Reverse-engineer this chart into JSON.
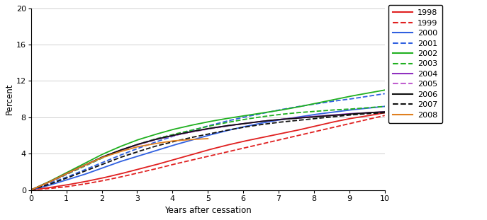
{
  "title": "",
  "ylabel": "Percent",
  "xlabel": "Years after cessation",
  "xlim": [
    0,
    10
  ],
  "ylim": [
    0,
    20
  ],
  "yticks": [
    0,
    4,
    8,
    12,
    16,
    20
  ],
  "xticks": [
    0,
    1,
    2,
    3,
    4,
    5,
    6,
    7,
    8,
    9,
    10
  ],
  "series": [
    {
      "label": "1998",
      "color": "#e02020",
      "linestyle": "solid",
      "points_t": [
        0,
        0.5,
        1,
        1.5,
        2,
        2.5,
        3,
        3.5,
        4,
        4.5,
        5,
        5.5,
        6,
        6.5,
        7,
        7.5,
        8,
        8.5,
        9,
        9.5,
        10
      ],
      "points_y": [
        0,
        0.25,
        0.55,
        0.9,
        1.3,
        1.75,
        2.25,
        2.75,
        3.3,
        3.85,
        4.4,
        4.9,
        5.35,
        5.75,
        6.15,
        6.55,
        7.0,
        7.45,
        7.85,
        8.15,
        8.5
      ]
    },
    {
      "label": "1999",
      "color": "#e02020",
      "linestyle": "dashed",
      "points_t": [
        0,
        0.5,
        1,
        1.5,
        2,
        2.5,
        3,
        3.5,
        4,
        4.5,
        5,
        5.5,
        6,
        6.5,
        7,
        7.5,
        8,
        8.5,
        9,
        9.5,
        10
      ],
      "points_y": [
        0,
        0.15,
        0.35,
        0.65,
        1.0,
        1.4,
        1.85,
        2.3,
        2.8,
        3.25,
        3.7,
        4.15,
        4.6,
        5.05,
        5.5,
        5.95,
        6.4,
        6.85,
        7.3,
        7.75,
        8.2
      ]
    },
    {
      "label": "2000",
      "color": "#3060e0",
      "linestyle": "solid",
      "points_t": [
        0,
        0.5,
        1,
        1.5,
        2,
        2.5,
        3,
        3.5,
        4,
        4.5,
        5,
        5.5,
        6,
        6.5,
        7,
        7.5,
        8,
        8.5,
        9,
        9.5,
        10
      ],
      "points_y": [
        0,
        0.5,
        1.1,
        1.7,
        2.4,
        3.1,
        3.7,
        4.3,
        4.9,
        5.45,
        6.0,
        6.5,
        6.95,
        7.35,
        7.7,
        8.0,
        8.3,
        8.55,
        8.8,
        9.0,
        9.2
      ]
    },
    {
      "label": "2001",
      "color": "#3060e0",
      "linestyle": "dashed",
      "points_t": [
        0,
        0.5,
        1,
        1.5,
        2,
        2.5,
        3,
        3.5,
        4,
        4.5,
        5,
        5.5,
        6,
        6.5,
        7,
        7.5,
        8,
        8.5,
        9,
        9.5,
        10
      ],
      "points_y": [
        0,
        0.7,
        1.4,
        2.2,
        3.0,
        3.8,
        4.55,
        5.25,
        5.9,
        6.5,
        7.05,
        7.55,
        8.0,
        8.4,
        8.8,
        9.15,
        9.45,
        9.75,
        10.0,
        10.3,
        10.6
      ]
    },
    {
      "label": "2002",
      "color": "#20b020",
      "linestyle": "solid",
      "points_t": [
        0,
        0.5,
        1,
        1.5,
        2,
        2.5,
        3,
        3.5,
        4,
        4.5,
        5,
        5.5,
        6,
        6.5,
        7,
        7.5,
        8,
        8.5,
        9,
        9.5,
        10
      ],
      "points_y": [
        0,
        0.9,
        1.9,
        2.9,
        3.9,
        4.75,
        5.5,
        6.1,
        6.65,
        7.1,
        7.5,
        7.85,
        8.15,
        8.45,
        8.75,
        9.1,
        9.5,
        9.9,
        10.3,
        10.65,
        11.0
      ]
    },
    {
      "label": "2003",
      "color": "#20b020",
      "linestyle": "dashed",
      "points_t": [
        0,
        0.5,
        1,
        1.5,
        2,
        2.5,
        3,
        3.5,
        4,
        4.5,
        5,
        5.5,
        6,
        6.5,
        7,
        7.5,
        8,
        8.5,
        9,
        9.5,
        10
      ],
      "points_y": [
        0,
        0.8,
        1.7,
        2.6,
        3.5,
        4.3,
        5.0,
        5.6,
        6.1,
        6.55,
        7.0,
        7.4,
        7.75,
        8.05,
        8.3,
        8.5,
        8.65,
        8.8,
        8.9,
        9.05,
        9.2
      ]
    },
    {
      "label": "2004",
      "color": "#9030c0",
      "linestyle": "solid",
      "points_t": [
        0,
        0.5,
        1,
        1.5,
        2,
        2.5,
        3,
        3.5,
        4,
        4.5,
        5,
        5.5,
        6,
        6.5,
        7,
        7.5,
        8,
        8.5,
        9,
        9.5,
        10
      ],
      "points_y": [
        0,
        0.85,
        1.8,
        2.7,
        3.6,
        4.35,
        5.0,
        5.55,
        6.0,
        6.4,
        6.75,
        7.05,
        7.3,
        7.55,
        7.75,
        7.95,
        8.1,
        8.25,
        8.4,
        8.5,
        8.6
      ]
    },
    {
      "label": "2005",
      "color": "#c060d0",
      "linestyle": "dashed",
      "points_t": [
        0,
        0.5,
        1,
        1.5,
        2,
        2.5,
        3,
        3.5,
        4,
        4.5,
        5,
        5.5,
        6,
        6.5,
        7,
        7.5,
        8,
        8.5,
        9,
        9.5,
        10
      ],
      "points_y": [
        0,
        0.8,
        1.75,
        2.65,
        3.55,
        4.3,
        4.95,
        5.5,
        5.95,
        6.35,
        6.7,
        7.0,
        7.3,
        7.55,
        7.75,
        7.9,
        8.05,
        8.2,
        8.35,
        8.5,
        8.6
      ]
    },
    {
      "label": "2006",
      "color": "#101010",
      "linestyle": "solid",
      "points_t": [
        0,
        0.5,
        1,
        1.5,
        2,
        2.5,
        3,
        3.5,
        4,
        4.5,
        5,
        5.5,
        6,
        6.5,
        7,
        7.5,
        8,
        8.5,
        9,
        9.5,
        10
      ],
      "points_y": [
        0,
        0.85,
        1.8,
        2.7,
        3.6,
        4.35,
        5.0,
        5.55,
        6.0,
        6.4,
        6.75,
        7.05,
        7.3,
        7.55,
        7.75,
        7.9,
        8.05,
        8.2,
        8.35,
        8.5,
        8.6
      ]
    },
    {
      "label": "2007",
      "color": "#101010",
      "linestyle": "dashed",
      "points_t": [
        0,
        0.5,
        1,
        1.5,
        2,
        2.5,
        3,
        3.5,
        4,
        4.5,
        5,
        5.5,
        6,
        6.5,
        7,
        7.5,
        8,
        8.5,
        9,
        9.5,
        10
      ],
      "points_y": [
        0,
        0.6,
        1.3,
        2.05,
        2.8,
        3.55,
        4.2,
        4.8,
        5.3,
        5.75,
        6.15,
        6.55,
        6.9,
        7.2,
        7.45,
        7.65,
        7.85,
        8.05,
        8.25,
        8.4,
        8.5
      ]
    },
    {
      "label": "2008",
      "color": "#e08020",
      "linestyle": "solid",
      "points_t": [
        0,
        0.5,
        1,
        1.5,
        2,
        2.5,
        3,
        3.5,
        4,
        4.5,
        5
      ],
      "points_y": [
        0,
        0.85,
        1.8,
        2.7,
        3.55,
        4.2,
        4.75,
        5.1,
        5.4,
        5.55,
        5.65
      ]
    }
  ],
  "background_color": "#ffffff",
  "grid_color": "#d0d0d0",
  "figsize": [
    6.87,
    3.11
  ],
  "dpi": 100
}
